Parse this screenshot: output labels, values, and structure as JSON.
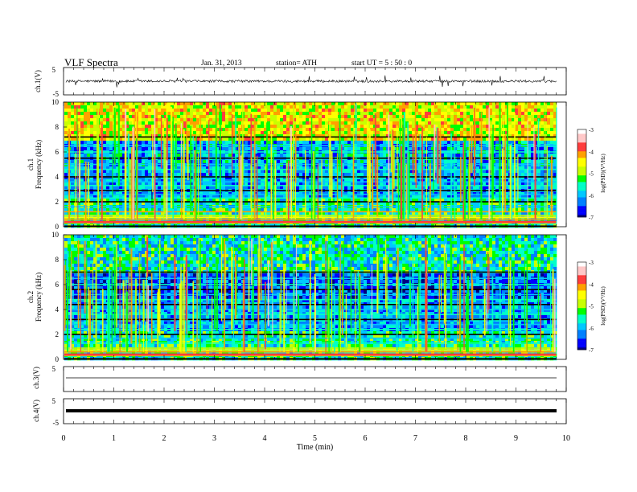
{
  "header": {
    "title": "VLF  Spectra",
    "date": "Jan.  31,  2013",
    "station": "station= ATH",
    "start": "start  UT  =    5  : 50 : 0"
  },
  "chart_data": [
    {
      "type": "line",
      "panel": "ch1-waveform",
      "ylabel": "ch.1(V)",
      "ylim": [
        -5,
        5
      ],
      "yticks": [
        "5",
        "-5"
      ],
      "xlim": [
        0,
        10
      ],
      "baseline": 0,
      "trace": "noisy waveform, about ±0.5 V with spikes up to ±2 V",
      "color": "#000000"
    },
    {
      "type": "heatmap",
      "panel": "ch1-spectrogram",
      "ylabel": "ch.1\nFrequency  (kHz)",
      "ylim": [
        0,
        10
      ],
      "yticks": [
        "0",
        "2",
        "4",
        "6",
        "8",
        "10"
      ],
      "xlim": [
        0,
        9.8
      ],
      "colorbar": {
        "label": "log(PSD)(V²/Hz)",
        "range": [
          -7,
          -3
        ],
        "ticks": [
          "-3",
          "-4",
          "-5",
          "-6",
          "-7"
        ]
      },
      "lines_kHz": [
        0.3,
        0.6,
        0.9,
        1.2,
        1.6,
        2.0,
        2.3,
        2.6,
        2.9,
        3.3,
        3.6,
        4.0,
        4.6,
        5.0,
        5.5,
        6.0,
        6.5,
        7.2
      ],
      "segment_changes_min": [
        1.75,
        6.7,
        8.0
      ]
    },
    {
      "type": "heatmap",
      "panel": "ch2-spectrogram",
      "ylabel": "ch.2\nFrequency  (kHz)",
      "ylim": [
        0,
        10
      ],
      "yticks": [
        "0",
        "2",
        "4",
        "6",
        "8",
        "10"
      ],
      "xlim": [
        0,
        9.8
      ],
      "colorbar": {
        "label": "log(PSD)(V²/Hz)",
        "range": [
          -7,
          -3
        ],
        "ticks": [
          "-3",
          "-4",
          "-5",
          "-6",
          "-7"
        ]
      },
      "lines_kHz": [
        0.3,
        0.6,
        0.9,
        1.3,
        1.7,
        2.0,
        2.4,
        2.8,
        3.2,
        3.6,
        4.0,
        4.4,
        4.8,
        5.2,
        5.6,
        6.0,
        6.5,
        7.0
      ],
      "segment_changes_min": [
        1.75,
        6.7,
        8.0
      ]
    },
    {
      "type": "line",
      "panel": "ch3-waveform",
      "ylabel": "ch.3(V)",
      "ylim": [
        -5,
        5
      ],
      "yticks": [
        "5"
      ],
      "xlim": [
        0,
        10
      ],
      "baseline": 0,
      "color": "#000000"
    },
    {
      "type": "line",
      "panel": "ch4-waveform",
      "ylabel": "ch.4(V)",
      "ylim": [
        -5,
        5
      ],
      "yticks": [
        "5",
        "-5"
      ],
      "xlim": [
        0,
        10
      ],
      "baseline": 0,
      "color": "#000000"
    }
  ],
  "x_axis": {
    "label": "Time  (min)",
    "ticks": [
      "0",
      "1",
      "2",
      "3",
      "4",
      "5",
      "6",
      "7",
      "8",
      "9",
      "10"
    ]
  },
  "colorscale": [
    "#000080",
    "#0000ff",
    "#0080ff",
    "#00c8ff",
    "#00ffc8",
    "#00ff00",
    "#c8ff00",
    "#ffff00",
    "#ffa000",
    "#ff3c3c",
    "#ffc8c8",
    "#ffffff"
  ]
}
